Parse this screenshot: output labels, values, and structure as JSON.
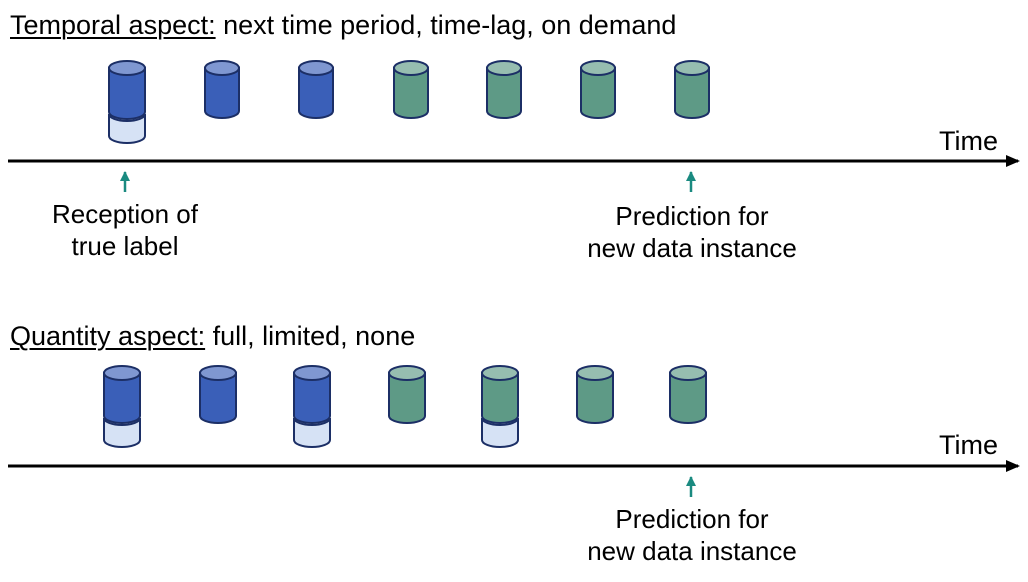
{
  "temporal": {
    "heading_key": "Temporal aspect:",
    "heading_rest": "next time period, time-lag, on demand",
    "axis_label": "Time",
    "caption_left": [
      "Reception of",
      "true label"
    ],
    "caption_right": [
      "Prediction for",
      "new data instance"
    ]
  },
  "quantity": {
    "heading_key": "Quantity aspect:",
    "heading_rest": "full, limited, none",
    "axis_label": "Time",
    "caption_right": [
      "Prediction for",
      "new data instance"
    ]
  },
  "colors": {
    "labeled_blue": "#3a5fb8",
    "unlabeled_green": "#5e9a86",
    "label_band": "#d6e2f5",
    "arrow": "#1a8a80",
    "axis": "#000000"
  }
}
